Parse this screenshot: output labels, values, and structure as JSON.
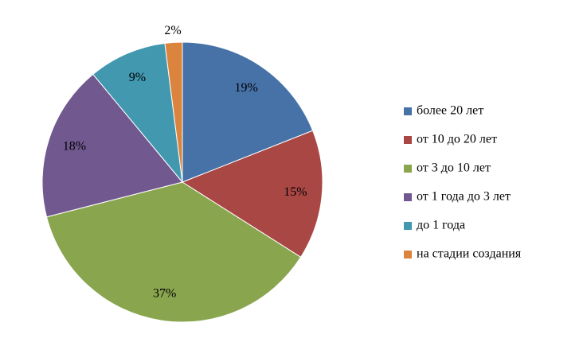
{
  "chart_data": {
    "type": "pie",
    "categories": [
      "более 20 лет",
      "от 10 до 20 лет",
      "от 3 до 10 лет",
      "от 1 года до 3 лет",
      "до 1 года",
      "на стадии создания"
    ],
    "values": [
      19,
      15,
      37,
      18,
      9,
      2
    ],
    "value_labels": [
      "19%",
      "15%",
      "37%",
      "18%",
      "9%",
      "2%"
    ],
    "colors": [
      "#4672A8",
      "#A94745",
      "#89A54E",
      "#71588F",
      "#4198AF",
      "#DB843D"
    ],
    "legend": "right"
  }
}
